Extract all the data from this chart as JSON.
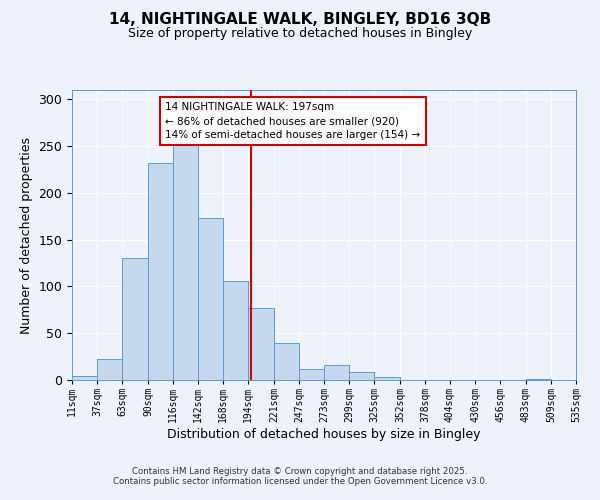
{
  "title": "14, NIGHTINGALE WALK, BINGLEY, BD16 3QB",
  "subtitle": "Size of property relative to detached houses in Bingley",
  "xlabel": "Distribution of detached houses by size in Bingley",
  "ylabel": "Number of detached properties",
  "bin_edges": [
    11,
    37,
    63,
    90,
    116,
    142,
    168,
    194,
    221,
    247,
    273,
    299,
    325,
    352,
    378,
    404,
    430,
    456,
    483,
    509,
    535
  ],
  "bar_heights": [
    4,
    22,
    130,
    232,
    251,
    173,
    106,
    77,
    40,
    12,
    16,
    9,
    3,
    0,
    0,
    0,
    0,
    0,
    1,
    0
  ],
  "bar_color": "#c5d8ed",
  "bar_edge_color": "#5b9bd5",
  "vline_x": 197,
  "vline_color": "#cc0000",
  "annotation_lines": [
    "14 NIGHTINGALE WALK: 197sqm",
    "← 86% of detached houses are smaller (920)",
    "14% of semi-detached houses are larger (154) →"
  ],
  "annotation_box_color": "#ffffff",
  "annotation_box_edge": "#cc0000",
  "tick_labels": [
    "11sqm",
    "37sqm",
    "63sqm",
    "90sqm",
    "116sqm",
    "142sqm",
    "168sqm",
    "194sqm",
    "221sqm",
    "247sqm",
    "273sqm",
    "299sqm",
    "325sqm",
    "352sqm",
    "378sqm",
    "404sqm",
    "430sqm",
    "456sqm",
    "483sqm",
    "509sqm",
    "535sqm"
  ],
  "ylim": [
    0,
    310
  ],
  "yticks": [
    0,
    50,
    100,
    150,
    200,
    250,
    300
  ],
  "background_color": "#eef2fa",
  "grid_color": "#ffffff",
  "footer_line1": "Contains HM Land Registry data © Crown copyright and database right 2025.",
  "footer_line2": "Contains public sector information licensed under the Open Government Licence v3.0."
}
